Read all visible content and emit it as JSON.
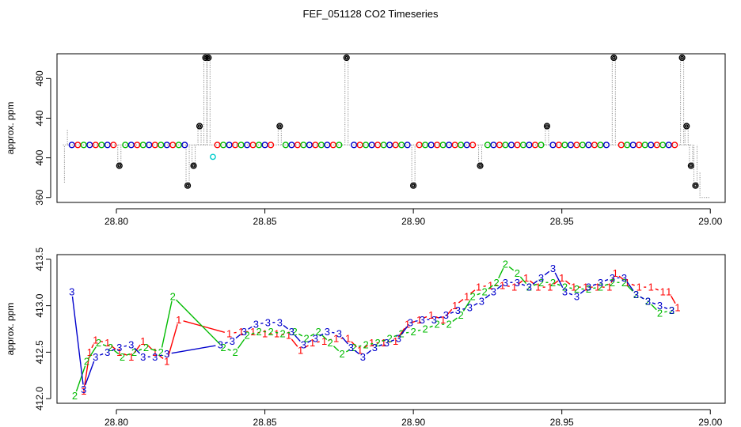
{
  "title": "FEF_051128  CO2 Timeseries",
  "colors": {
    "red": "#ff0000",
    "green": "#00bb00",
    "blue": "#0000cc",
    "black": "#000000",
    "cyan": "#00cccc",
    "raw": "#8a8a8a"
  },
  "chart_data": [
    {
      "type": "scatter",
      "panel": "top",
      "title": "",
      "xlabel": "",
      "ylabel": "approx. ppm",
      "xlim": [
        28.78,
        29.005
      ],
      "ylim": [
        355,
        505
      ],
      "xticks": [
        "28.80",
        "28.85",
        "28.90",
        "28.95",
        "29.00"
      ],
      "yticks": [
        "360",
        "400",
        "440",
        "480"
      ],
      "grid": false,
      "legend": "none",
      "cycle_points": {
        "x": [
          28.785,
          28.787,
          28.789,
          28.791,
          28.793,
          28.795,
          28.797,
          28.799,
          28.803,
          28.805,
          28.807,
          28.809,
          28.811,
          28.813,
          28.815,
          28.817,
          28.819,
          28.821,
          28.823,
          28.834,
          28.836,
          28.838,
          28.84,
          28.842,
          28.844,
          28.846,
          28.848,
          28.85,
          28.852,
          28.857,
          28.859,
          28.861,
          28.863,
          28.865,
          28.867,
          28.869,
          28.871,
          28.873,
          28.875,
          28.88,
          28.882,
          28.884,
          28.886,
          28.888,
          28.89,
          28.892,
          28.894,
          28.896,
          28.898,
          28.902,
          28.904,
          28.906,
          28.908,
          28.91,
          28.912,
          28.914,
          28.916,
          28.918,
          28.92,
          28.925,
          28.927,
          28.929,
          28.931,
          28.933,
          28.935,
          28.937,
          28.939,
          28.941,
          28.943,
          28.947,
          28.949,
          28.951,
          28.953,
          28.955,
          28.957,
          28.959,
          28.961,
          28.963,
          28.965,
          28.97,
          28.972,
          28.974,
          28.976,
          28.978,
          28.98,
          28.982,
          28.984,
          28.986,
          28.988
        ],
        "y": 413
      },
      "reference_points": {
        "x": [
          28.801,
          28.824,
          28.826,
          28.828,
          28.83,
          28.831,
          28.855,
          28.8775,
          28.9,
          28.9225,
          28.945,
          28.9675,
          28.9905,
          28.992,
          28.9935,
          28.995
        ],
        "y": [
          392,
          372,
          392,
          432,
          501,
          501,
          432,
          501,
          372,
          392,
          432,
          501,
          501,
          432,
          392,
          372
        ]
      },
      "cyan_point": {
        "x": 28.8325,
        "y": 401
      }
    },
    {
      "type": "line",
      "panel": "bottom",
      "title": "",
      "xlabel": "",
      "ylabel": "approx. ppm",
      "xlim": [
        28.78,
        29.005
      ],
      "ylim": [
        411.95,
        413.55
      ],
      "xticks": [
        "28.80",
        "28.85",
        "28.90",
        "28.95",
        "29.00"
      ],
      "yticks": [
        "412.0",
        "412.5",
        "413.0",
        "413.5"
      ],
      "grid": false,
      "legend": "none",
      "series": [
        {
          "name": "1",
          "color": "red",
          "points": [
            [
              28.789,
              412.08
            ],
            [
              28.791,
              412.5
            ],
            [
              28.793,
              412.63
            ],
            [
              28.797,
              412.6
            ],
            [
              28.801,
              412.5
            ],
            [
              28.805,
              412.45
            ],
            [
              28.809,
              412.62
            ],
            [
              28.813,
              412.5
            ],
            [
              28.817,
              412.4
            ],
            [
              28.821,
              412.85
            ],
            [
              28.838,
              412.7
            ],
            [
              28.842,
              412.72
            ],
            [
              28.846,
              412.72
            ],
            [
              28.85,
              412.7
            ],
            [
              28.854,
              412.7
            ],
            [
              28.858,
              412.68
            ],
            [
              28.862,
              412.52
            ],
            [
              28.866,
              412.6
            ],
            [
              28.87,
              412.62
            ],
            [
              28.874,
              412.65
            ],
            [
              28.878,
              412.65
            ],
            [
              28.882,
              412.52
            ],
            [
              28.886,
              412.6
            ],
            [
              28.89,
              412.6
            ],
            [
              28.894,
              412.62
            ],
            [
              28.898,
              412.8
            ],
            [
              28.902,
              412.85
            ],
            [
              28.906,
              412.9
            ],
            [
              28.91,
              412.85
            ],
            [
              28.914,
              413.0
            ],
            [
              28.918,
              413.1
            ],
            [
              28.922,
              413.2
            ],
            [
              28.926,
              413.22
            ],
            [
              28.93,
              413.22
            ],
            [
              28.934,
              413.2
            ],
            [
              28.938,
              413.3
            ],
            [
              28.942,
              413.2
            ],
            [
              28.946,
              413.2
            ],
            [
              28.95,
              413.3
            ],
            [
              28.954,
              413.2
            ],
            [
              28.958,
              413.2
            ],
            [
              28.962,
              413.2
            ],
            [
              28.966,
              413.2
            ],
            [
              28.968,
              413.35
            ],
            [
              28.972,
              413.25
            ],
            [
              28.976,
              413.2
            ],
            [
              28.98,
              413.2
            ],
            [
              28.984,
              413.15
            ],
            [
              28.986,
              413.15
            ],
            [
              28.989,
              412.98
            ]
          ]
        },
        {
          "name": "2",
          "color": "green",
          "points": [
            [
              28.786,
              412.03
            ],
            [
              28.79,
              412.4
            ],
            [
              28.794,
              412.6
            ],
            [
              28.798,
              412.55
            ],
            [
              28.802,
              412.45
            ],
            [
              28.806,
              412.5
            ],
            [
              28.81,
              412.55
            ],
            [
              28.815,
              412.5
            ],
            [
              28.819,
              413.1
            ],
            [
              28.836,
              412.55
            ],
            [
              28.84,
              412.5
            ],
            [
              28.844,
              412.68
            ],
            [
              28.848,
              412.72
            ],
            [
              28.852,
              412.72
            ],
            [
              28.856,
              412.7
            ],
            [
              28.86,
              412.72
            ],
            [
              28.864,
              412.65
            ],
            [
              28.868,
              412.72
            ],
            [
              28.872,
              412.6
            ],
            [
              28.876,
              412.48
            ],
            [
              28.88,
              412.55
            ],
            [
              28.884,
              412.58
            ],
            [
              28.888,
              412.6
            ],
            [
              28.892,
              412.65
            ],
            [
              28.896,
              412.7
            ],
            [
              28.9,
              412.72
            ],
            [
              28.904,
              412.75
            ],
            [
              28.908,
              412.8
            ],
            [
              28.912,
              412.8
            ],
            [
              28.916,
              412.9
            ],
            [
              28.92,
              413.1
            ],
            [
              28.924,
              413.15
            ],
            [
              28.928,
              413.25
            ],
            [
              28.931,
              413.45
            ],
            [
              28.935,
              413.35
            ],
            [
              28.939,
              413.2
            ],
            [
              28.943,
              413.25
            ],
            [
              28.947,
              413.25
            ],
            [
              28.951,
              413.2
            ],
            [
              28.955,
              413.18
            ],
            [
              28.959,
              413.18
            ],
            [
              28.963,
              413.2
            ],
            [
              28.967,
              413.25
            ],
            [
              28.971,
              413.25
            ],
            [
              28.975,
              413.12
            ],
            [
              28.979,
              413.05
            ],
            [
              28.983,
              412.92
            ],
            [
              28.987,
              412.95
            ]
          ]
        },
        {
          "name": "3",
          "color": "blue",
          "points": [
            [
              28.785,
              413.15
            ],
            [
              28.789,
              412.1
            ],
            [
              28.793,
              412.45
            ],
            [
              28.797,
              412.5
            ],
            [
              28.801,
              412.55
            ],
            [
              28.805,
              412.58
            ],
            [
              28.809,
              412.45
            ],
            [
              28.813,
              412.45
            ],
            [
              28.817,
              412.48
            ],
            [
              28.835,
              412.58
            ],
            [
              28.839,
              412.62
            ],
            [
              28.843,
              412.72
            ],
            [
              28.847,
              412.8
            ],
            [
              28.851,
              412.82
            ],
            [
              28.855,
              412.82
            ],
            [
              28.859,
              412.72
            ],
            [
              28.863,
              412.58
            ],
            [
              28.867,
              412.65
            ],
            [
              28.871,
              412.72
            ],
            [
              28.875,
              412.7
            ],
            [
              28.879,
              412.55
            ],
            [
              28.883,
              412.45
            ],
            [
              28.887,
              412.55
            ],
            [
              28.891,
              412.6
            ],
            [
              28.895,
              412.65
            ],
            [
              28.899,
              412.82
            ],
            [
              28.903,
              412.85
            ],
            [
              28.907,
              412.85
            ],
            [
              28.911,
              412.9
            ],
            [
              28.915,
              412.95
            ],
            [
              28.919,
              412.98
            ],
            [
              28.923,
              413.05
            ],
            [
              28.927,
              413.15
            ],
            [
              28.931,
              413.25
            ],
            [
              28.935,
              413.25
            ],
            [
              28.939,
              413.2
            ],
            [
              28.943,
              413.3
            ],
            [
              28.947,
              413.4
            ],
            [
              28.951,
              413.15
            ],
            [
              28.955,
              413.1
            ],
            [
              28.959,
              413.2
            ],
            [
              28.963,
              413.25
            ],
            [
              28.967,
              413.3
            ],
            [
              28.971,
              413.3
            ],
            [
              28.975,
              413.12
            ],
            [
              28.979,
              413.05
            ],
            [
              28.983,
              413.0
            ],
            [
              28.987,
              412.95
            ]
          ]
        }
      ]
    }
  ]
}
